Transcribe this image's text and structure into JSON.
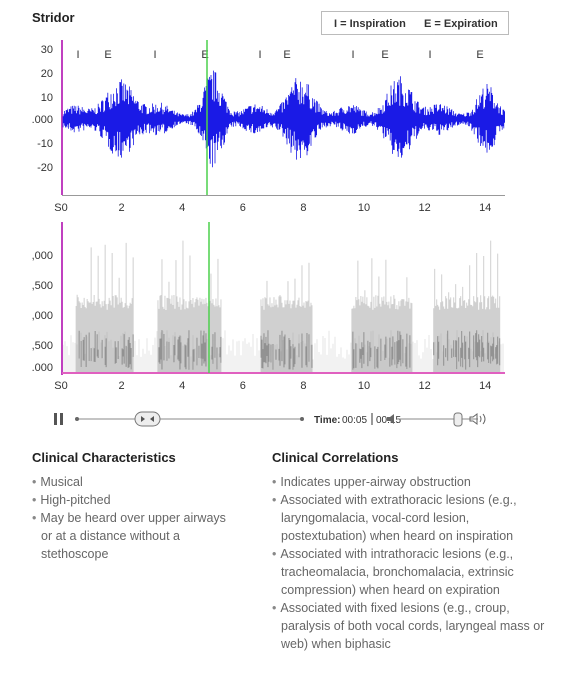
{
  "title": "Stridor",
  "legend": {
    "inspiration": "I = Inspiration",
    "expiration": "E = Expiration"
  },
  "waveform": {
    "markers": [
      "I",
      "E",
      "I",
      "E",
      "I",
      "E",
      "I",
      "E",
      "I",
      "E"
    ],
    "y_labels": [
      "30",
      "20",
      "10",
      ".000",
      "-10",
      "-20"
    ],
    "x_labels": [
      "S0",
      "2",
      "4",
      "6",
      "8",
      "10",
      "12",
      "14"
    ]
  },
  "spectrogram": {
    "y_labels": [
      ",000",
      ",500",
      ",000",
      ",500",
      ".000"
    ],
    "x_labels": [
      "S0",
      "2",
      "4",
      "6",
      "8",
      "10",
      "12",
      "14"
    ]
  },
  "player": {
    "time_label": "Time:",
    "current": "00:05",
    "total": "00:15"
  },
  "sections": [
    {
      "heading": "Clinical Characteristics",
      "items": [
        "Musical",
        "High-pitched",
        "May be heard over upper airways or at a distance without a stethoscope"
      ]
    },
    {
      "heading": "Clinical Correlations",
      "items": [
        "Indicates upper-airway obstruction",
        "Associated with extrathoracic lesions (e.g., laryngomalacia, vocal-cord lesion, postextubation) when heard on inspiration",
        "Associated with intrathoracic lesions (e.g., tracheomalacia, bronchomalacia, extrinsic compression) when heard on expiration",
        "Associated with fixed lesions (e.g., croup, paralysis of both vocal cords, laryngeal mass or web) when biphasic"
      ]
    }
  ]
}
